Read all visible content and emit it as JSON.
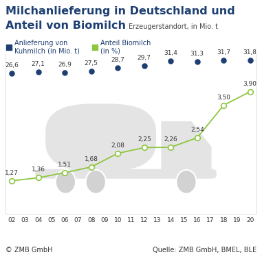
{
  "chart_data": {
    "type": "line",
    "title": "Milchanlieferung in Deutschland und\nAnteil von Biomilch",
    "subtitle": "Erzeugerstandort, in Mio. t",
    "copyright": "© ZMB GmbH",
    "source": "Quelle: ZMB GmbH, BMEL, BLE",
    "categories": [
      "02",
      "03",
      "04",
      "05",
      "06",
      "07",
      "08",
      "09",
      "10",
      "11",
      "12",
      "13",
      "14",
      "15",
      "16",
      "17",
      "18",
      "19",
      "20"
    ],
    "series": [
      {
        "name": "Anlieferung von\nKuhmilch (in Mio. t)",
        "color": "#1d3f72",
        "type": "scatter",
        "marker": "circle",
        "axis": "y",
        "values": [
          26.6,
          null,
          27.1,
          null,
          26.9,
          null,
          27.5,
          null,
          28.7,
          null,
          29.7,
          null,
          31.4,
          null,
          31.3,
          null,
          31.7,
          null,
          31.8
        ],
        "value_labels": [
          "26,6",
          null,
          "27,1",
          null,
          "26,9",
          null,
          "27,5",
          null,
          "28,7",
          null,
          "29,7",
          null,
          "31,4",
          null,
          "31,3",
          null,
          "31,7",
          null,
          "31,8"
        ]
      },
      {
        "name": "Anteil Biomilch\n(in %)",
        "color": "#8dc63f",
        "type": "line",
        "marker": "circle",
        "line_style": "solid",
        "axis": "y2",
        "values": [
          1.27,
          null,
          1.36,
          null,
          1.51,
          null,
          1.68,
          null,
          2.08,
          null,
          2.25,
          null,
          2.26,
          null,
          2.54,
          null,
          3.5,
          null,
          3.9
        ],
        "value_labels": [
          "1,27",
          null,
          "1,36",
          null,
          "1,51",
          null,
          "1,68",
          null,
          "2,08",
          null,
          "2,25",
          null,
          "2,26",
          null,
          "2,54",
          null,
          "3,50",
          null,
          "3,90"
        ]
      }
    ],
    "ylim": [
      -28,
      34
    ],
    "yticks": [],
    "y2lim": [
      0.3,
      5.0
    ],
    "y2ticks": [],
    "tick_labels": "x",
    "data_labels": true,
    "grid": false,
    "legend": "upper left"
  }
}
